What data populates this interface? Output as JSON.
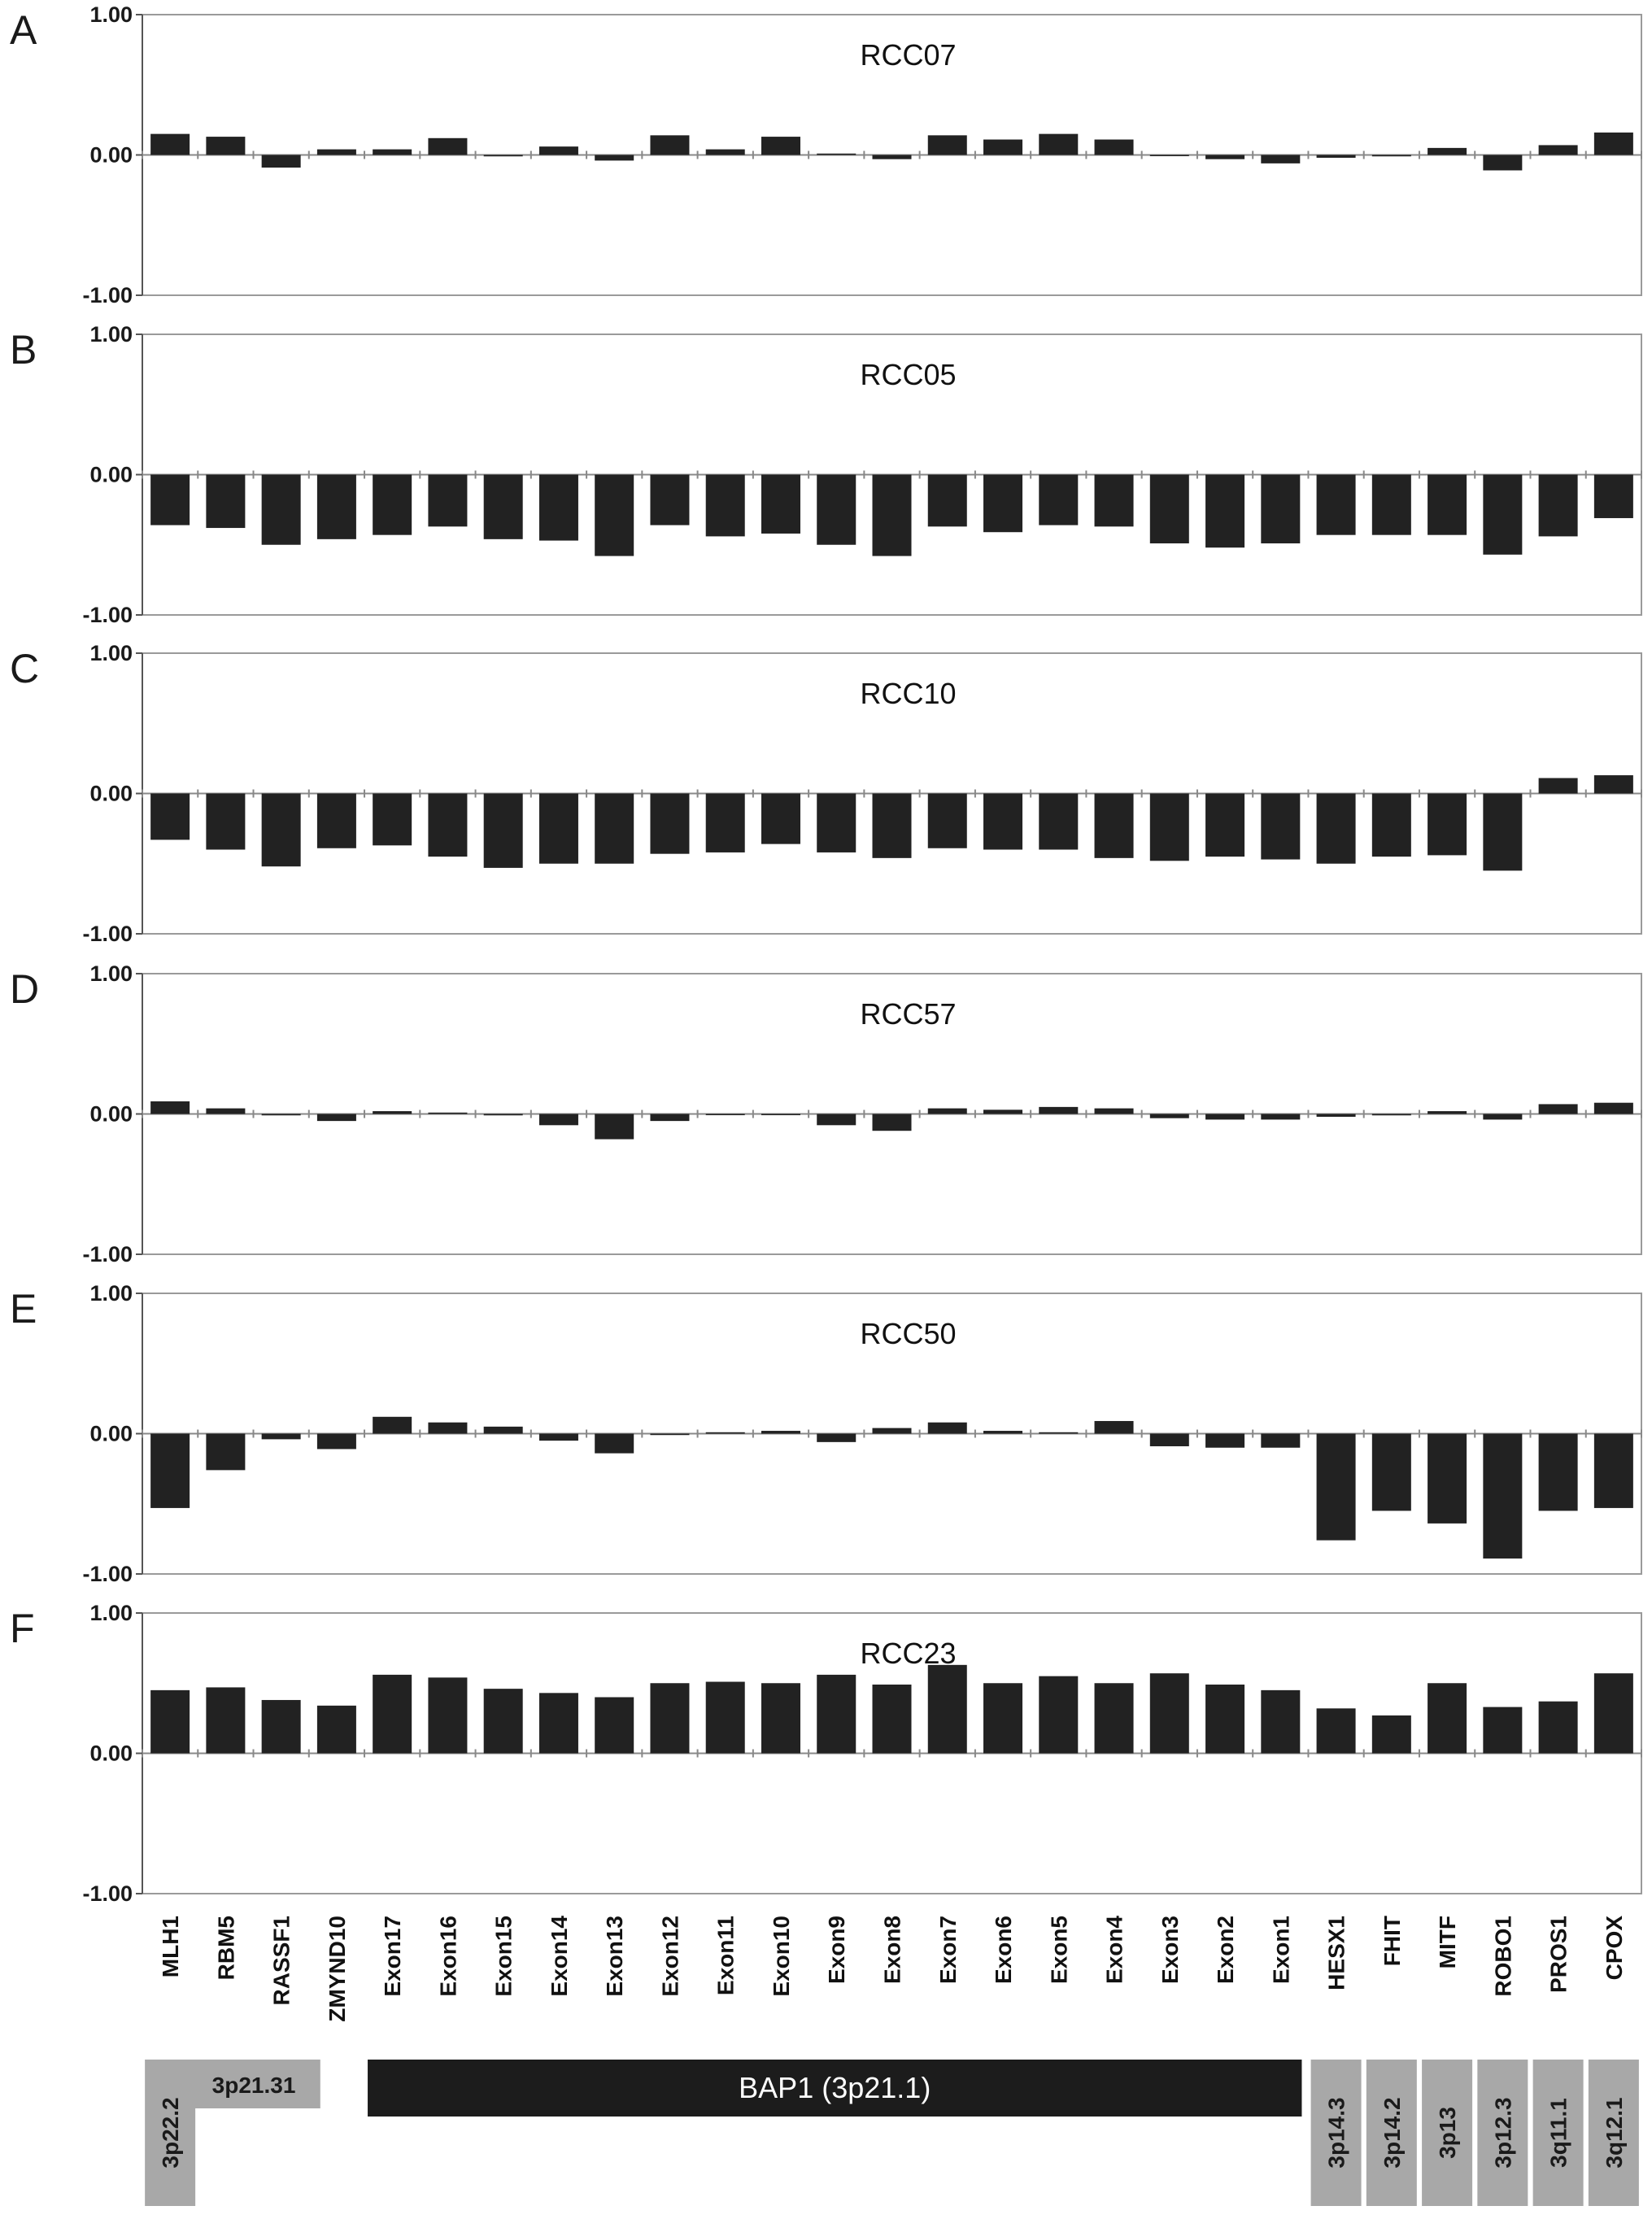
{
  "chart_data": {
    "type": "bar",
    "categories": [
      "MLH1",
      "RBM5",
      "RASSF1",
      "ZMYND10",
      "Exon17",
      "Exon16",
      "Exon15",
      "Exon14",
      "Exon13",
      "Exon12",
      "Exon11",
      "Exon10",
      "Exon9",
      "Exon8",
      "Exon7",
      "Exon6",
      "Exon5",
      "Exon4",
      "Exon3",
      "Exon2",
      "Exon1",
      "HESX1",
      "FHIT",
      "MITF",
      "ROBO1",
      "PROS1",
      "CPOX"
    ],
    "ylim": [
      -1.0,
      1.0
    ],
    "yticks": [
      "1.00",
      "0.00",
      "-1.00"
    ],
    "grid": false,
    "bar_color": "#222222",
    "panels": [
      {
        "letter": "A",
        "title": "RCC07",
        "values": [
          0.15,
          0.13,
          -0.09,
          0.04,
          0.04,
          0.12,
          -0.01,
          0.06,
          -0.04,
          0.14,
          0.04,
          0.13,
          0.01,
          -0.03,
          0.14,
          0.11,
          0.15,
          0.11,
          0.0,
          -0.03,
          -0.06,
          -0.02,
          -0.01,
          0.05,
          -0.11,
          0.07,
          0.16
        ]
      },
      {
        "letter": "B",
        "title": "RCC05",
        "values": [
          -0.36,
          -0.38,
          -0.5,
          -0.46,
          -0.43,
          -0.37,
          -0.46,
          -0.47,
          -0.58,
          -0.36,
          -0.44,
          -0.42,
          -0.5,
          -0.58,
          -0.37,
          -0.41,
          -0.36,
          -0.37,
          -0.49,
          -0.52,
          -0.49,
          -0.43,
          -0.43,
          -0.43,
          -0.57,
          -0.44,
          -0.31
        ]
      },
      {
        "letter": "C",
        "title": "RCC10",
        "values": [
          -0.33,
          -0.4,
          -0.52,
          -0.39,
          -0.37,
          -0.45,
          -0.53,
          -0.5,
          -0.5,
          -0.43,
          -0.42,
          -0.36,
          -0.42,
          -0.46,
          -0.39,
          -0.4,
          -0.4,
          -0.46,
          -0.48,
          -0.45,
          -0.47,
          -0.5,
          -0.45,
          -0.44,
          -0.55,
          0.11,
          0.13
        ]
      },
      {
        "letter": "D",
        "title": "RCC57",
        "values": [
          0.09,
          0.04,
          -0.01,
          -0.05,
          0.02,
          0.01,
          -0.01,
          -0.08,
          -0.18,
          -0.05,
          0.0,
          0.0,
          -0.08,
          -0.12,
          0.04,
          0.03,
          0.05,
          0.04,
          -0.03,
          -0.04,
          -0.04,
          -0.02,
          -0.01,
          0.02,
          -0.04,
          0.07,
          0.08
        ]
      },
      {
        "letter": "E",
        "title": "RCC50",
        "values": [
          -0.53,
          -0.26,
          -0.04,
          -0.11,
          0.12,
          0.08,
          0.05,
          -0.05,
          -0.14,
          -0.01,
          0.01,
          0.02,
          -0.06,
          0.04,
          0.08,
          0.02,
          0.01,
          0.09,
          -0.09,
          -0.1,
          -0.1,
          -0.76,
          -0.55,
          -0.64,
          -0.89,
          -0.55,
          -0.53
        ]
      },
      {
        "letter": "F",
        "title": "RCC23",
        "values": [
          0.45,
          0.47,
          0.38,
          0.34,
          0.56,
          0.54,
          0.46,
          0.43,
          0.4,
          0.5,
          0.51,
          0.5,
          0.56,
          0.49,
          0.63,
          0.5,
          0.55,
          0.5,
          0.57,
          0.49,
          0.45,
          0.32,
          0.27,
          0.5,
          0.33,
          0.37,
          0.57
        ]
      }
    ],
    "annotation_bands": [
      {
        "label": "3p22.2",
        "from": "MLH1",
        "to": "MLH1",
        "style": "grey-vertical"
      },
      {
        "label": "3p21.31",
        "from": "RBM5",
        "to": "RASSF1",
        "style": "grey-horizontal"
      },
      {
        "label": "BAP1 (3p21.1)",
        "from": "Exon17",
        "to": "Exon1",
        "style": "dark-horizontal"
      },
      {
        "label": "3p14.3",
        "from": "HESX1",
        "to": "HESX1",
        "style": "grey-vertical"
      },
      {
        "label": "3p14.2",
        "from": "FHIT",
        "to": "FHIT",
        "style": "grey-vertical"
      },
      {
        "label": "3p13",
        "from": "MITF",
        "to": "MITF",
        "style": "grey-vertical"
      },
      {
        "label": "3p12.3",
        "from": "ROBO1",
        "to": "ROBO1",
        "style": "grey-vertical"
      },
      {
        "label": "3q11.1",
        "from": "PROS1",
        "to": "PROS1",
        "style": "grey-vertical"
      },
      {
        "label": "3q12.1",
        "from": "CPOX",
        "to": "CPOX",
        "style": "grey-vertical"
      }
    ],
    "colors": {
      "bar": "#222222",
      "axis": "#555555",
      "frame": "#9a9a9a",
      "band_grey": "#a8a8a8",
      "band_dark": "#1c1c1c"
    }
  }
}
